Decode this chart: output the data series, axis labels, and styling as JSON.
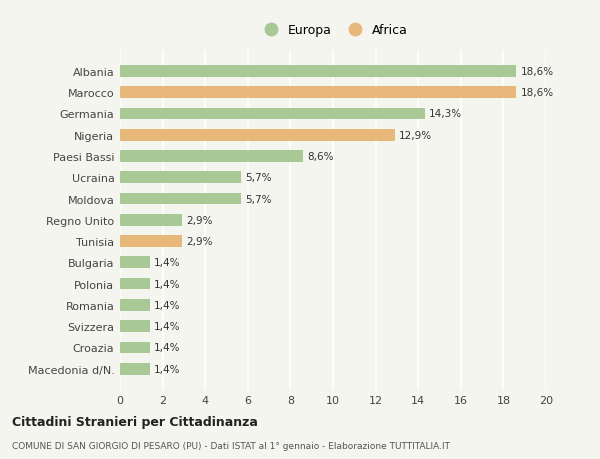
{
  "categories": [
    "Albania",
    "Marocco",
    "Germania",
    "Nigeria",
    "Paesi Bassi",
    "Ucraina",
    "Moldova",
    "Regno Unito",
    "Tunisia",
    "Bulgaria",
    "Polonia",
    "Romania",
    "Svizzera",
    "Croazia",
    "Macedonia d/N."
  ],
  "values": [
    18.6,
    18.6,
    14.3,
    12.9,
    8.6,
    5.7,
    5.7,
    2.9,
    2.9,
    1.4,
    1.4,
    1.4,
    1.4,
    1.4,
    1.4
  ],
  "labels": [
    "18,6%",
    "18,6%",
    "14,3%",
    "12,9%",
    "8,6%",
    "5,7%",
    "5,7%",
    "2,9%",
    "2,9%",
    "1,4%",
    "1,4%",
    "1,4%",
    "1,4%",
    "1,4%",
    "1,4%"
  ],
  "continents": [
    "Europa",
    "Africa",
    "Europa",
    "Africa",
    "Europa",
    "Europa",
    "Europa",
    "Europa",
    "Africa",
    "Europa",
    "Europa",
    "Europa",
    "Europa",
    "Europa",
    "Europa"
  ],
  "color_europa": "#a8c896",
  "color_africa": "#e8b87a",
  "bg_color": "#f5f5f0",
  "title1": "Cittadini Stranieri per Cittadinanza",
  "title2": "COMUNE DI SAN GIORGIO DI PESARO (PU) - Dati ISTAT al 1° gennaio - Elaborazione TUTTITALIA.IT",
  "xlim": [
    0,
    20
  ],
  "xticks": [
    0,
    2,
    4,
    6,
    8,
    10,
    12,
    14,
    16,
    18,
    20
  ],
  "legend_europa": "Europa",
  "legend_africa": "Africa"
}
